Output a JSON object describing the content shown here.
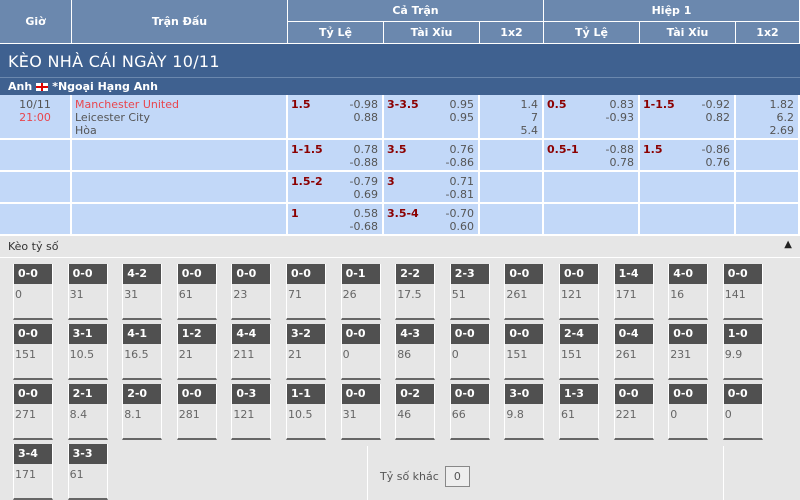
{
  "header": {
    "time": "Giờ",
    "match": "Trận Đấu",
    "full": "Cả Trận",
    "half": "Hiệp 1",
    "handicap": "Tỷ Lệ",
    "overunder": "Tài Xỉu",
    "x12": "1x2"
  },
  "title": "KÈO NHÀ CÁI NGÀY 10/11",
  "league": {
    "country": "Anh",
    "name": "*Ngoại Hạng Anh",
    "flag_icon": "england-flag-icon"
  },
  "match": {
    "date": "10/11",
    "time": "21:00",
    "home": "Manchester United",
    "away": "Leicester City",
    "draw": "Hòa"
  },
  "colors": {
    "header": "#6b88ae",
    "title_bar": "#3f6190",
    "row": "#c2d8f8",
    "line": "#8b0000",
    "home": "#e8454d"
  },
  "rows": [
    {
      "ft_hdp": {
        "line": "1.5",
        "odds": [
          "-0.98",
          "0.88"
        ]
      },
      "ft_ou": {
        "line": "3-3.5",
        "odds": [
          "0.95",
          "0.95"
        ]
      },
      "ft_1x2": [
        "1.4",
        "7",
        "5.4"
      ],
      "h1_hdp": {
        "line": "0.5",
        "odds": [
          "0.83",
          "-0.93"
        ]
      },
      "h1_ou": {
        "line": "1-1.5",
        "odds": [
          "-0.92",
          "0.82"
        ]
      },
      "h1_1x2": [
        "1.82",
        "6.2",
        "2.69"
      ]
    },
    {
      "ft_hdp": {
        "line": "1-1.5",
        "odds": [
          "0.78",
          "-0.88"
        ]
      },
      "ft_ou": {
        "line": "3.5",
        "odds": [
          "0.76",
          "-0.86"
        ]
      },
      "ft_1x2": [],
      "h1_hdp": {
        "line": "0.5-1",
        "odds": [
          "-0.88",
          "0.78"
        ]
      },
      "h1_ou": {
        "line": "1.5",
        "odds": [
          "-0.86",
          "0.76"
        ]
      },
      "h1_1x2": []
    },
    {
      "ft_hdp": {
        "line": "1.5-2",
        "odds": [
          "-0.79",
          "0.69"
        ]
      },
      "ft_ou": {
        "line": "3",
        "odds": [
          "0.71",
          "-0.81"
        ]
      },
      "ft_1x2": [],
      "h1_hdp": {
        "line": "",
        "odds": []
      },
      "h1_ou": {
        "line": "",
        "odds": []
      },
      "h1_1x2": []
    },
    {
      "ft_hdp": {
        "line": "1",
        "odds": [
          "0.58",
          "-0.68"
        ]
      },
      "ft_ou": {
        "line": "3.5-4",
        "odds": [
          "-0.70",
          "0.60"
        ]
      },
      "ft_1x2": [],
      "h1_hdp": {
        "line": "",
        "odds": []
      },
      "h1_ou": {
        "line": "",
        "odds": []
      },
      "h1_1x2": []
    }
  ],
  "correct_score": {
    "title": "Kèo tỷ số",
    "collapse_icon": "caret-up-icon",
    "items": [
      [
        "0-0",
        "0"
      ],
      [
        "0-0",
        "31"
      ],
      [
        "4-2",
        "31"
      ],
      [
        "0-0",
        "61"
      ],
      [
        "0-0",
        "23"
      ],
      [
        "0-0",
        "71"
      ],
      [
        "0-1",
        "26"
      ],
      [
        "2-2",
        "17.5"
      ],
      [
        "2-3",
        "51"
      ],
      [
        "0-0",
        "261"
      ],
      [
        "0-0",
        "121"
      ],
      [
        "1-4",
        "171"
      ],
      [
        "4-0",
        "16"
      ],
      [
        "0-0",
        "141"
      ],
      [
        "0-0",
        "151"
      ],
      [
        "3-1",
        "10.5"
      ],
      [
        "4-1",
        "16.5"
      ],
      [
        "1-2",
        "21"
      ],
      [
        "4-4",
        "211"
      ],
      [
        "3-2",
        "21"
      ],
      [
        "0-0",
        "0"
      ],
      [
        "4-3",
        "86"
      ],
      [
        "0-0",
        "0"
      ],
      [
        "0-0",
        "151"
      ],
      [
        "2-4",
        "151"
      ],
      [
        "0-4",
        "261"
      ],
      [
        "0-0",
        "231"
      ],
      [
        "1-0",
        "9.9"
      ],
      [
        "0-0",
        "271"
      ],
      [
        "2-1",
        "8.4"
      ],
      [
        "2-0",
        "8.1"
      ],
      [
        "0-0",
        "281"
      ],
      [
        "0-3",
        "121"
      ],
      [
        "1-1",
        "10.5"
      ],
      [
        "0-0",
        "31"
      ],
      [
        "0-2",
        "46"
      ],
      [
        "0-0",
        "66"
      ],
      [
        "3-0",
        "9.8"
      ],
      [
        "1-3",
        "61"
      ],
      [
        "0-0",
        "221"
      ],
      [
        "0-0",
        "0"
      ],
      [
        "0-0",
        "0"
      ],
      [
        "3-4",
        "171"
      ],
      [
        "3-3",
        "61"
      ]
    ],
    "other_label": "Tỷ số khác",
    "other_value": "0"
  }
}
